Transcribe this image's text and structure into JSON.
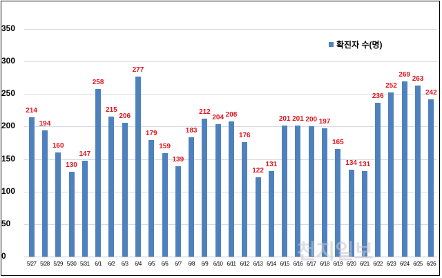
{
  "chart_data": {
    "type": "bar",
    "title": "",
    "xlabel": "",
    "ylabel": "",
    "ylim": [
      0,
      350
    ],
    "yticks": [
      0,
      50,
      100,
      150,
      200,
      250,
      300,
      350
    ],
    "grid": true,
    "legend_position": "top-right",
    "categories": [
      "5/27",
      "5/28",
      "5/29",
      "5/30",
      "5/31",
      "6/1",
      "6/2",
      "6/3",
      "6/4",
      "6/5",
      "6/6",
      "6/7",
      "6/8",
      "6/9",
      "6/10",
      "6/11",
      "6/12",
      "6/13",
      "6/14",
      "6/15",
      "6/16",
      "6/17",
      "6/18",
      "6/19",
      "6/20",
      "6/21",
      "6/22",
      "6/23",
      "6/24",
      "6/25",
      "6/26"
    ],
    "series": [
      {
        "name": "확진자 수(명)",
        "color": "#4f81bd",
        "values": [
          214,
          194,
          160,
          130,
          147,
          258,
          215,
          206,
          277,
          179,
          159,
          139,
          183,
          212,
          204,
          208,
          176,
          122,
          131,
          201,
          201,
          200,
          197,
          165,
          134,
          131,
          236,
          252,
          269,
          263,
          242
        ]
      }
    ],
    "data_label_color": "#e0141e"
  },
  "legend": {
    "label": "확진자 수(명)"
  },
  "watermark": "천지일보"
}
